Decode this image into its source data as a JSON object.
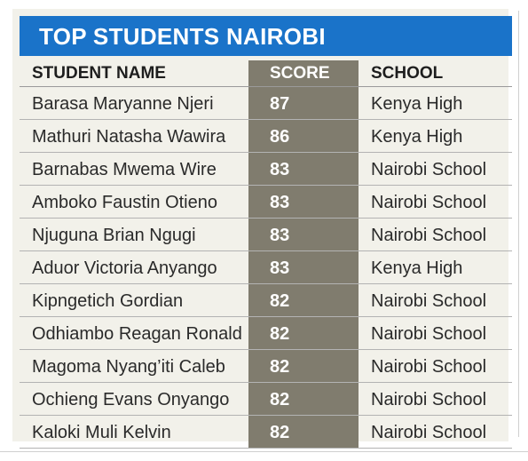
{
  "title": "TOP STUDENTS NAIROBI",
  "columns": {
    "name": "STUDENT NAME",
    "score": "SCORE",
    "school": "SCHOOL"
  },
  "students": [
    {
      "name": "Barasa Maryanne Njeri",
      "score": "87",
      "school": "Kenya High"
    },
    {
      "name": "Mathuri Natasha Wawira",
      "score": "86",
      "school": "Kenya High"
    },
    {
      "name": "Barnabas Mwema Wire",
      "score": "83",
      "school": "Nairobi School"
    },
    {
      "name": "Amboko Faustin Otieno",
      "score": "83",
      "school": "Nairobi School"
    },
    {
      "name": "Njuguna Brian Ngugi",
      "score": "83",
      "school": "Nairobi School"
    },
    {
      "name": "Aduor Victoria Anyango",
      "score": "83",
      "school": "Kenya High"
    },
    {
      "name": "Kipngetich Gordian",
      "score": "82",
      "school": "Nairobi School"
    },
    {
      "name": "Odhiambo Reagan Ronald",
      "score": "82",
      "school": "Nairobi School"
    },
    {
      "name": "Magoma Nyang’iti Caleb",
      "score": "82",
      "school": "Nairobi School"
    },
    {
      "name": "Ochieng Evans Onyango",
      "score": "82",
      "school": "Nairobi School"
    },
    {
      "name": "Kaloki Muli Kelvin",
      "score": "82",
      "school": "Nairobi School"
    }
  ],
  "colors": {
    "title_bg": "#1a73c9",
    "score_column_bg": "#807c6e",
    "table_bg": "#f2f1ea"
  }
}
